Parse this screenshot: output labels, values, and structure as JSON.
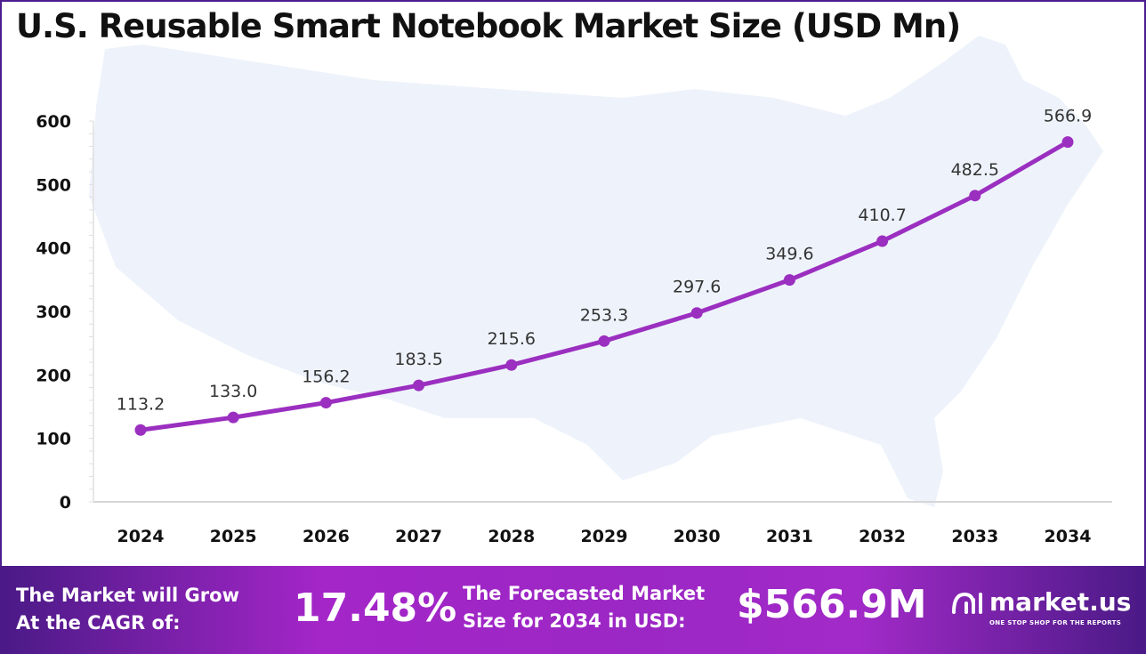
{
  "title": "U.S. Reusable Smart Notebook Market Size (USD Mn)",
  "chart_data": {
    "type": "line",
    "title": "U.S. Reusable Smart Notebook Market Size (USD Mn)",
    "categories": [
      "2024",
      "2025",
      "2026",
      "2027",
      "2028",
      "2029",
      "2030",
      "2031",
      "2032",
      "2033",
      "2034"
    ],
    "values": [
      113.2,
      133.0,
      156.2,
      183.5,
      215.6,
      253.3,
      297.6,
      349.6,
      410.7,
      482.5,
      566.9
    ],
    "data_labels": [
      "113.2",
      "133.0",
      "156.2",
      "183.5",
      "215.6",
      "253.3",
      "297.6",
      "349.6",
      "410.7",
      "482.5",
      "566.9"
    ],
    "yticks": [
      "0",
      "100",
      "200",
      "300",
      "400",
      "500",
      "600"
    ],
    "ylim": [
      0,
      600
    ],
    "grid": false,
    "line_color": "#9b2fc0"
  },
  "banner": {
    "cagr_label_1": "The Market will Grow",
    "cagr_label_2": "At the CAGR of:",
    "cagr_value": "17.48%",
    "forecast_label_1": "The Forecasted Market",
    "forecast_label_2": "Size for 2034 in USD:",
    "forecast_value": "$566.9M",
    "logo_name": "market.us",
    "logo_tagline": "ONE STOP SHOP FOR THE REPORTS"
  }
}
